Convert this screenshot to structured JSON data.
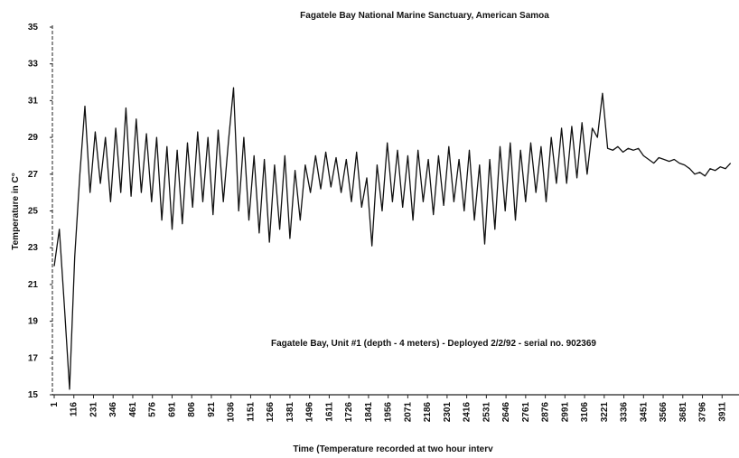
{
  "chart_data": {
    "type": "line",
    "title": "Fagatele Bay National Marine Sanctuary, American Samoa",
    "annotation": "Fagatele Bay, Unit #1 (depth - 4 meters) - Deployed 2/2/92  -  serial no. 902369",
    "x_label": "Time (Temperature recorded at two hour interv",
    "y_label": "Temperature in C°",
    "x": [
      1,
      31,
      61,
      91,
      121,
      151,
      181,
      211,
      241,
      271,
      301,
      331,
      361,
      391,
      421,
      451,
      481,
      511,
      541,
      571,
      601,
      631,
      661,
      691,
      721,
      751,
      781,
      811,
      841,
      871,
      901,
      931,
      961,
      991,
      1021,
      1051,
      1081,
      1111,
      1141,
      1171,
      1201,
      1231,
      1261,
      1291,
      1321,
      1351,
      1381,
      1411,
      1441,
      1471,
      1501,
      1531,
      1561,
      1591,
      1621,
      1651,
      1681,
      1711,
      1741,
      1771,
      1801,
      1831,
      1861,
      1891,
      1921,
      1951,
      1981,
      2011,
      2041,
      2071,
      2101,
      2131,
      2161,
      2191,
      2221,
      2251,
      2281,
      2311,
      2341,
      2371,
      2401,
      2431,
      2461,
      2491,
      2521,
      2551,
      2581,
      2611,
      2641,
      2671,
      2701,
      2731,
      2761,
      2791,
      2821,
      2851,
      2881,
      2911,
      2941,
      2971,
      3001,
      3031,
      3061,
      3091,
      3121,
      3151,
      3181,
      3211,
      3241,
      3271,
      3301,
      3331,
      3361,
      3391,
      3421,
      3451,
      3481,
      3511,
      3541,
      3571,
      3601,
      3631,
      3661,
      3691,
      3721,
      3751,
      3781,
      3811,
      3841,
      3871,
      3901,
      3931,
      3961
    ],
    "series": [
      {
        "color": "#111111",
        "values": [
          22.0,
          24.0,
          19.8,
          15.3,
          22.5,
          27.0,
          30.7,
          26.0,
          29.3,
          26.5,
          29.0,
          25.5,
          29.5,
          26.0,
          30.6,
          25.8,
          30.0,
          26.0,
          29.2,
          25.5,
          29.0,
          24.5,
          28.5,
          24.0,
          28.3,
          24.3,
          28.7,
          25.2,
          29.3,
          25.5,
          29.0,
          24.8,
          29.4,
          25.5,
          28.8,
          31.7,
          25.0,
          29.0,
          24.5,
          28.0,
          23.8,
          27.8,
          23.3,
          27.5,
          24.0,
          28.0,
          23.5,
          27.2,
          24.5,
          27.5,
          26.0,
          28.0,
          26.2,
          28.2,
          26.3,
          27.9,
          26.0,
          27.8,
          25.5,
          28.2,
          25.2,
          26.8,
          23.1,
          27.5,
          25.0,
          28.7,
          25.5,
          28.3,
          25.2,
          28.0,
          24.5,
          28.3,
          25.5,
          27.8,
          24.8,
          28.0,
          25.3,
          28.5,
          25.5,
          27.8,
          25.0,
          28.3,
          24.5,
          27.5,
          23.2,
          27.8,
          24.0,
          28.5,
          25.0,
          28.7,
          24.5,
          28.3,
          25.5,
          28.7,
          26.0,
          28.5,
          25.5,
          29.0,
          26.5,
          29.5,
          26.5,
          29.6,
          26.8,
          29.8,
          27.0,
          29.5,
          29.0,
          31.4,
          28.4,
          28.3,
          28.5,
          28.2,
          28.4,
          28.3,
          28.4,
          28.0,
          27.8,
          27.6,
          27.9,
          27.8,
          27.7,
          27.8,
          27.6,
          27.5,
          27.3,
          27.0,
          27.1,
          26.9,
          27.3,
          27.2,
          27.4,
          27.3,
          27.6
        ]
      }
    ],
    "xlim": [
      1,
      4010
    ],
    "xticks": [
      1,
      116,
      231,
      346,
      461,
      576,
      691,
      806,
      921,
      1036,
      1151,
      1266,
      1381,
      1496,
      1611,
      1726,
      1841,
      1956,
      2071,
      2186,
      2301,
      2416,
      2531,
      2646,
      2761,
      2876,
      2991,
      3106,
      3221,
      3336,
      3451,
      3566,
      3681,
      3796,
      3911
    ],
    "ylim": [
      15,
      35
    ],
    "yticks": [
      15,
      17,
      19,
      21,
      23,
      25,
      27,
      29,
      31,
      33,
      35
    ]
  }
}
